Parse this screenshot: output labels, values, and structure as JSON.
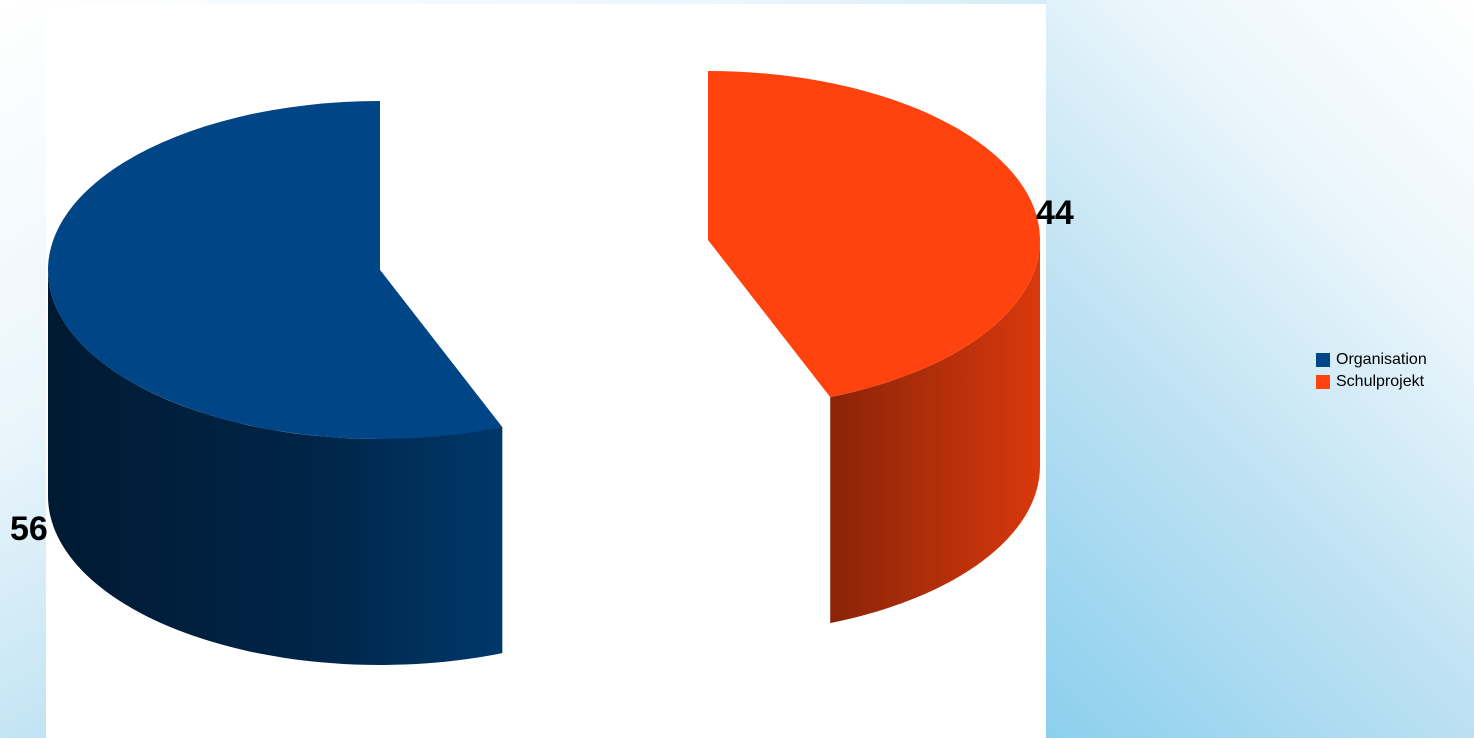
{
  "chart_data": {
    "type": "pie",
    "style": "3d-exploded",
    "categories": [
      "Organisation",
      "Schulprojekt"
    ],
    "values": [
      56,
      44
    ],
    "data_labels": [
      "56",
      "44"
    ],
    "colors": [
      "#004586",
      "#ff420e"
    ],
    "legend": {
      "position": "right",
      "entries": [
        "Organisation",
        "Schulprojekt"
      ]
    }
  }
}
